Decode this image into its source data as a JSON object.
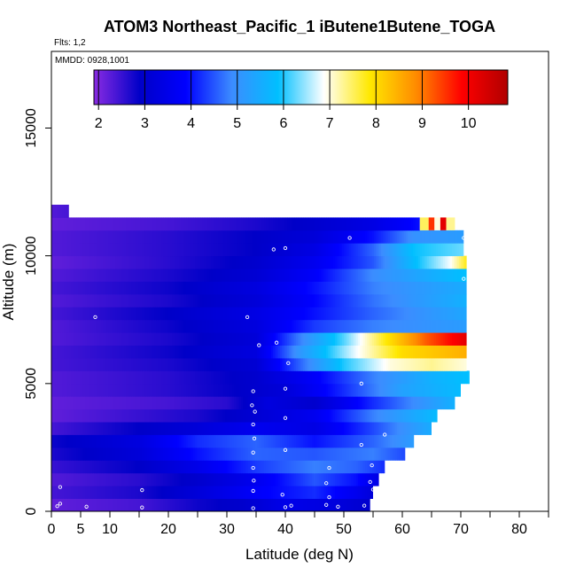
{
  "chart_data": {
    "type": "heatmap",
    "title": "ATOM3 Northeast_Pacific_1 iButene1Butene_TOGA",
    "flights_label": "Flts: 1,2",
    "dates_label": "MMDD: 0928,1001",
    "xlabel": "Latitude (deg N)",
    "ylabel": "Altitude (m)",
    "xlim": [
      0,
      85
    ],
    "ylim": [
      0,
      18000
    ],
    "x_ticks": [
      0,
      5,
      10,
      20,
      30,
      40,
      50,
      60,
      70,
      80
    ],
    "x_minor_ticks": [
      15,
      25,
      35,
      45,
      55,
      65,
      75,
      85
    ],
    "y_ticks": [
      0,
      5000,
      10000,
      15000
    ],
    "colorbar": {
      "min": 1.9,
      "max": 10.85,
      "ticks": [
        2,
        3,
        4,
        5,
        6,
        7,
        8,
        9,
        10
      ],
      "colors": [
        "#8a2be2",
        "#0000c8",
        "#0000ff",
        "#3c8cff",
        "#00bfff",
        "#ffffff",
        "#ffe800",
        "#ff8c00",
        "#ff0000",
        "#b00000"
      ]
    },
    "layers": [
      {
        "alt_min": 0,
        "alt_max": 500,
        "lat_max": 54.5,
        "values": [
          [
            0,
            2.2
          ],
          [
            15,
            2.4
          ],
          [
            25,
            2.8
          ],
          [
            33,
            3.0
          ],
          [
            40,
            3.5
          ],
          [
            48,
            3.3
          ],
          [
            54.5,
            3.0
          ]
        ]
      },
      {
        "alt_min": 500,
        "alt_max": 1000,
        "lat_max": 55,
        "values": [
          [
            0,
            2.4
          ],
          [
            15,
            2.7
          ],
          [
            25,
            3.2
          ],
          [
            35,
            3.8
          ],
          [
            45,
            4.2
          ],
          [
            52,
            3.6
          ],
          [
            55,
            3.2
          ]
        ]
      },
      {
        "alt_min": 1000,
        "alt_max": 1500,
        "lat_max": 56,
        "values": [
          [
            0,
            2.3
          ],
          [
            15,
            2.6
          ],
          [
            25,
            3.0
          ],
          [
            35,
            3.6
          ],
          [
            45,
            4.5
          ],
          [
            52,
            4.0
          ],
          [
            56,
            3.4
          ]
        ]
      },
      {
        "alt_min": 1500,
        "alt_max": 2000,
        "lat_max": 57,
        "values": [
          [
            0,
            2.5
          ],
          [
            15,
            2.9
          ],
          [
            25,
            3.5
          ],
          [
            35,
            4.3
          ],
          [
            45,
            4.8
          ],
          [
            52,
            4.6
          ],
          [
            57,
            4.2
          ]
        ]
      },
      {
        "alt_min": 2000,
        "alt_max": 2500,
        "lat_max": 60.5,
        "values": [
          [
            0,
            2.7
          ],
          [
            15,
            3.2
          ],
          [
            25,
            4.0
          ],
          [
            35,
            4.6
          ],
          [
            45,
            4.5
          ],
          [
            55,
            4.8
          ],
          [
            60.5,
            4.4
          ]
        ]
      },
      {
        "alt_min": 2500,
        "alt_max": 3000,
        "lat_max": 62,
        "values": [
          [
            0,
            2.8
          ],
          [
            15,
            3.3
          ],
          [
            25,
            4.2
          ],
          [
            35,
            4.6
          ],
          [
            45,
            4.0
          ],
          [
            55,
            4.6
          ],
          [
            62,
            5.2
          ]
        ]
      },
      {
        "alt_min": 3000,
        "alt_max": 3500,
        "lat_max": 65,
        "values": [
          [
            0,
            2.4
          ],
          [
            15,
            2.9
          ],
          [
            25,
            3.2
          ],
          [
            35,
            3.6
          ],
          [
            45,
            3.4
          ],
          [
            55,
            4.4
          ],
          [
            65,
            5.5
          ]
        ]
      },
      {
        "alt_min": 3500,
        "alt_max": 4000,
        "lat_max": 66,
        "values": [
          [
            0,
            2.2
          ],
          [
            15,
            2.5
          ],
          [
            25,
            2.7
          ],
          [
            35,
            3.1
          ],
          [
            45,
            3.6
          ],
          [
            55,
            4.8
          ],
          [
            66,
            5.8
          ]
        ]
      },
      {
        "alt_min": 4000,
        "alt_max": 4500,
        "lat_max": 69,
        "values": [
          [
            0,
            2.2
          ],
          [
            20,
            2.4
          ],
          [
            30,
            2.6
          ],
          [
            37,
            3.3
          ],
          [
            45,
            3.0
          ],
          [
            55,
            4.2
          ],
          [
            69,
            5.6
          ]
        ]
      },
      {
        "alt_min": 4500,
        "alt_max": 5000,
        "lat_max": 70,
        "values": [
          [
            0,
            2.3
          ],
          [
            20,
            2.6
          ],
          [
            32,
            2.9
          ],
          [
            40,
            3.2
          ],
          [
            50,
            4.2
          ],
          [
            60,
            5.3
          ],
          [
            70,
            5.8
          ]
        ]
      },
      {
        "alt_min": 5000,
        "alt_max": 5500,
        "lat_max": 71.5,
        "values": [
          [
            0,
            2.3
          ],
          [
            20,
            2.6
          ],
          [
            35,
            3.0
          ],
          [
            45,
            3.8
          ],
          [
            55,
            4.8
          ],
          [
            65,
            5.6
          ],
          [
            71.5,
            5.9
          ]
        ]
      },
      {
        "alt_min": 5500,
        "alt_max": 6000,
        "lat_max": 71,
        "values": [
          [
            0,
            2.4
          ],
          [
            20,
            2.7
          ],
          [
            35,
            3.1
          ],
          [
            42,
            4.5
          ],
          [
            50,
            6.0
          ],
          [
            58,
            7.0
          ],
          [
            65,
            7.3
          ],
          [
            71,
            7.0
          ]
        ]
      },
      {
        "alt_min": 6000,
        "alt_max": 6500,
        "lat_max": 71,
        "values": [
          [
            0,
            2.4
          ],
          [
            20,
            2.8
          ],
          [
            35,
            3.3
          ],
          [
            42,
            5.0
          ],
          [
            52,
            6.8
          ],
          [
            60,
            8.0
          ],
          [
            71,
            8.5
          ]
        ]
      },
      {
        "alt_min": 6500,
        "alt_max": 7000,
        "lat_max": 71,
        "values": [
          [
            0,
            2.3
          ],
          [
            20,
            2.7
          ],
          [
            35,
            3.2
          ],
          [
            42,
            4.7
          ],
          [
            50,
            6.2
          ],
          [
            57,
            7.8
          ],
          [
            64,
            9.2
          ],
          [
            71,
            10.2
          ]
        ]
      },
      {
        "alt_min": 7000,
        "alt_max": 7500,
        "lat_max": 71,
        "values": [
          [
            0,
            2.3
          ],
          [
            20,
            2.8
          ],
          [
            35,
            3.3
          ],
          [
            45,
            4.3
          ],
          [
            55,
            4.8
          ],
          [
            71,
            5.2
          ]
        ]
      },
      {
        "alt_min": 7500,
        "alt_max": 8000,
        "lat_max": 71,
        "values": [
          [
            0,
            2.4
          ],
          [
            20,
            2.9
          ],
          [
            35,
            3.4
          ],
          [
            45,
            4.0
          ],
          [
            55,
            4.6
          ],
          [
            71,
            5.4
          ]
        ]
      },
      {
        "alt_min": 8000,
        "alt_max": 8500,
        "lat_max": 71,
        "values": [
          [
            0,
            2.3
          ],
          [
            20,
            2.7
          ],
          [
            35,
            3.2
          ],
          [
            45,
            3.9
          ],
          [
            55,
            4.7
          ],
          [
            71,
            5.6
          ]
        ]
      },
      {
        "alt_min": 8500,
        "alt_max": 9000,
        "lat_max": 71,
        "values": [
          [
            0,
            2.4
          ],
          [
            20,
            2.8
          ],
          [
            35,
            3.3
          ],
          [
            45,
            4.0
          ],
          [
            55,
            4.8
          ],
          [
            71,
            5.5
          ]
        ]
      },
      {
        "alt_min": 9000,
        "alt_max": 9500,
        "lat_max": 71,
        "values": [
          [
            0,
            2.3
          ],
          [
            20,
            2.7
          ],
          [
            35,
            3.1
          ],
          [
            45,
            3.8
          ],
          [
            55,
            4.9
          ],
          [
            71,
            5.9
          ]
        ]
      },
      {
        "alt_min": 9500,
        "alt_max": 10000,
        "lat_max": 71,
        "values": [
          [
            0,
            2.2
          ],
          [
            20,
            2.6
          ],
          [
            35,
            3.0
          ],
          [
            45,
            3.6
          ],
          [
            55,
            4.5
          ],
          [
            62,
            5.8
          ],
          [
            68,
            6.8
          ],
          [
            71,
            7.8
          ]
        ]
      },
      {
        "alt_min": 10000,
        "alt_max": 10500,
        "lat_max": 70.5,
        "values": [
          [
            0,
            2.3
          ],
          [
            20,
            2.6
          ],
          [
            35,
            2.9
          ],
          [
            45,
            3.4
          ],
          [
            55,
            4.6
          ],
          [
            62,
            5.9
          ],
          [
            70.5,
            6.3
          ]
        ]
      },
      {
        "alt_min": 10500,
        "alt_max": 11000,
        "lat_max": 70.5,
        "values": [
          [
            0,
            2.3
          ],
          [
            20,
            2.6
          ],
          [
            35,
            2.9
          ],
          [
            45,
            3.2
          ],
          [
            55,
            4.0
          ],
          [
            62,
            5.0
          ],
          [
            70.5,
            5.2
          ]
        ]
      },
      {
        "alt_min": 11000,
        "alt_max": 11500,
        "lat_max": 63,
        "values": [
          [
            0,
            2.2
          ],
          [
            20,
            2.4
          ],
          [
            35,
            2.7
          ],
          [
            45,
            3.0
          ],
          [
            55,
            3.4
          ],
          [
            63,
            4.0
          ]
        ]
      },
      {
        "alt_min": 11500,
        "alt_max": 12000,
        "lat_max": 3,
        "values": [
          [
            0,
            2.3
          ],
          [
            3,
            2.4
          ]
        ]
      }
    ],
    "hot_spot_row": {
      "alt_min": 11000,
      "alt_max": 11500,
      "cells": [
        [
          63.0,
          64.5,
          7.5
        ],
        [
          64.5,
          65.5,
          9.5
        ],
        [
          65.5,
          66.5,
          7.0
        ],
        [
          66.5,
          67.5,
          10.2
        ],
        [
          67.5,
          69.0,
          7.3
        ]
      ]
    },
    "samples": [
      [
        1,
        200
      ],
      [
        1.5,
        300
      ],
      [
        6,
        180
      ],
      [
        15.5,
        150
      ],
      [
        34.5,
        120
      ],
      [
        40,
        160
      ],
      [
        41,
        220
      ],
      [
        47,
        250
      ],
      [
        49,
        180
      ],
      [
        53.5,
        220
      ],
      [
        1.5,
        950
      ],
      [
        15.5,
        830
      ],
      [
        34.5,
        800
      ],
      [
        39.5,
        650
      ],
      [
        47.5,
        550
      ],
      [
        55,
        850
      ],
      [
        34.6,
        1200
      ],
      [
        47,
        1100
      ],
      [
        54.5,
        1150
      ],
      [
        34.5,
        1700
      ],
      [
        47.5,
        1700
      ],
      [
        54.8,
        1800
      ],
      [
        34.5,
        2300
      ],
      [
        40,
        2400
      ],
      [
        53,
        2600
      ],
      [
        34.7,
        2850
      ],
      [
        34.5,
        3400
      ],
      [
        57,
        3000
      ],
      [
        34.8,
        3900
      ],
      [
        40,
        3650
      ],
      [
        34.3,
        4150
      ],
      [
        34.5,
        4700
      ],
      [
        40,
        4800
      ],
      [
        53,
        5000
      ],
      [
        40.5,
        5800
      ],
      [
        35.5,
        6500
      ],
      [
        38.5,
        6600
      ],
      [
        7.5,
        7600
      ],
      [
        33.5,
        7600
      ],
      [
        70.5,
        9100
      ],
      [
        38,
        10250
      ],
      [
        40,
        10300
      ],
      [
        51,
        10700
      ],
      [
        70.5,
        10700
      ]
    ]
  }
}
